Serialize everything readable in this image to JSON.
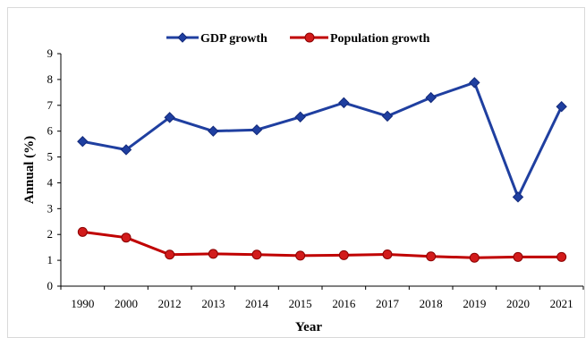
{
  "chart_data": {
    "type": "line",
    "categories": [
      "1990",
      "2000",
      "2012",
      "2013",
      "2014",
      "2015",
      "2016",
      "2017",
      "2018",
      "2019",
      "2020",
      "2021"
    ],
    "series": [
      {
        "name": "GDP growth",
        "color": "#1f3fa0",
        "marker": "diamond",
        "values": [
          5.6,
          5.28,
          6.53,
          6.0,
          6.05,
          6.55,
          7.1,
          6.58,
          7.3,
          7.88,
          3.45,
          6.95
        ]
      },
      {
        "name": "Population growth",
        "color": "#c00000",
        "marker": "circle",
        "values": [
          2.1,
          1.88,
          1.22,
          1.25,
          1.22,
          1.18,
          1.2,
          1.23,
          1.15,
          1.1,
          1.13,
          1.13
        ]
      }
    ],
    "title": "",
    "xlabel": "Year",
    "ylabel": "Annual (%)",
    "ylim": [
      0,
      9
    ],
    "yticks": [
      "0",
      "1",
      "2",
      "3",
      "4",
      "5",
      "6",
      "7",
      "8",
      "9"
    ],
    "grid": false,
    "legend_position": "top-center"
  }
}
